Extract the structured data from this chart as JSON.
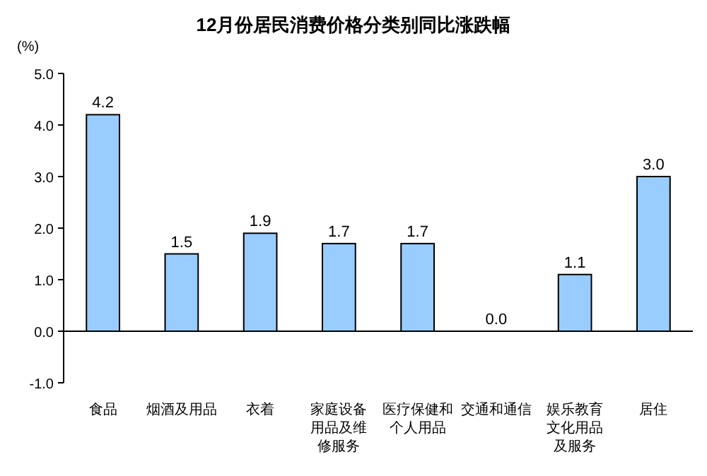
{
  "chart_data": {
    "type": "bar",
    "title": "12月份居民消费价格分类别同比涨跌幅",
    "ylabel": "(%)",
    "categories": [
      "食品",
      "烟酒及用品",
      "衣着",
      "家庭设备用品及维修服务",
      "医疗保健和个人用品",
      "交通和通信",
      "娱乐教育文化用品及服务",
      "居住"
    ],
    "values": [
      4.2,
      1.5,
      1.9,
      1.7,
      1.7,
      0.0,
      1.1,
      3.0
    ],
    "value_labels": [
      "4.2",
      "1.5",
      "1.9",
      "1.7",
      "1.7",
      "0.0",
      "1.1",
      "3.0"
    ],
    "color": "#99ccff",
    "ylim": [
      -1,
      5
    ],
    "yticks": [
      {
        "value": -1,
        "label": "-1.0"
      },
      {
        "value": 0,
        "label": "0.0"
      },
      {
        "value": 1,
        "label": "1.0"
      },
      {
        "value": 2,
        "label": "2.0"
      },
      {
        "value": 3,
        "label": "3.0"
      },
      {
        "value": 4,
        "label": "4.0"
      },
      {
        "value": 5,
        "label": "5.0"
      }
    ]
  }
}
